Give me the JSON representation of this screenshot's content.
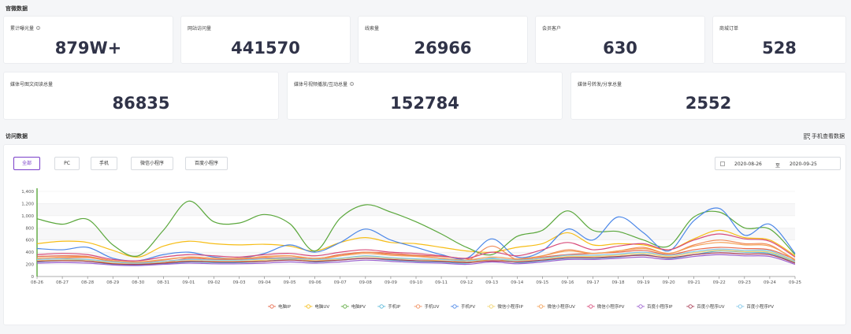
{
  "sections": {
    "official_data": "官微数据",
    "visit_data": "访问数据"
  },
  "mobile_link": "手机查看数据",
  "stats_row1": [
    {
      "label": "累计曝光量",
      "value": "879W+",
      "info": true
    },
    {
      "label": "网站访问量",
      "value": "441570",
      "info": false
    },
    {
      "label": "线索量",
      "value": "26966",
      "info": false
    },
    {
      "label": "会员客户",
      "value": "630",
      "info": false
    },
    {
      "label": "商城订单",
      "value": "528",
      "info": false
    }
  ],
  "stats_row2": [
    {
      "label": "媒体号图文阅读总量",
      "value": "86835",
      "info": false
    },
    {
      "label": "媒体号视频播放/互动总量",
      "value": "152784",
      "info": true
    },
    {
      "label": "媒体号转发/分享总量",
      "value": "2552",
      "info": false
    }
  ],
  "tabs": [
    {
      "label": "全部",
      "active": true
    },
    {
      "label": "PC",
      "active": false
    },
    {
      "label": "手机",
      "active": false
    },
    {
      "label": "微信小程序",
      "active": false
    },
    {
      "label": "百度小程序",
      "active": false
    }
  ],
  "date_range": {
    "start": "2020-08-26",
    "sep": "至",
    "end": "2020-09-25"
  },
  "chart_data": {
    "type": "line",
    "x": [
      "08-26",
      "08-27",
      "08-28",
      "08-29",
      "08-30",
      "08-31",
      "09-01",
      "09-02",
      "09-03",
      "09-04",
      "09-05",
      "09-06",
      "09-07",
      "09-08",
      "09-09",
      "09-10",
      "09-11",
      "09-12",
      "09-13",
      "09-14",
      "09-15",
      "09-16",
      "09-17",
      "09-18",
      "09-19",
      "09-20",
      "09-21",
      "09-22",
      "09-23",
      "09-24",
      "09-25"
    ],
    "y_ticks": [
      "0",
      "200",
      "400",
      "600",
      "800",
      "1,000",
      "1,200",
      "1,400"
    ],
    "ylim": [
      0,
      1400
    ],
    "series": [
      {
        "name": "电脑IP",
        "color": "#e8684a",
        "values": [
          330,
          340,
          330,
          260,
          220,
          230,
          300,
          280,
          280,
          300,
          310,
          290,
          360,
          400,
          380,
          350,
          330,
          290,
          250,
          280,
          320,
          360,
          380,
          400,
          430,
          360,
          440,
          480,
          460,
          440,
          280
        ]
      },
      {
        "name": "电脑UV",
        "color": "#f6bd16",
        "values": [
          540,
          580,
          560,
          430,
          320,
          500,
          580,
          540,
          520,
          530,
          500,
          420,
          560,
          640,
          560,
          540,
          480,
          420,
          400,
          480,
          540,
          720,
          520,
          540,
          520,
          440,
          620,
          760,
          640,
          600,
          340
        ]
      },
      {
        "name": "电脑PV",
        "color": "#5aa73b",
        "values": [
          950,
          860,
          940,
          520,
          340,
          760,
          1240,
          900,
          880,
          1020,
          870,
          420,
          960,
          1180,
          1060,
          900,
          700,
          480,
          360,
          660,
          760,
          1080,
          760,
          740,
          600,
          500,
          980,
          1060,
          800,
          780,
          360
        ]
      },
      {
        "name": "手机IP",
        "color": "#5ab8d9",
        "values": [
          240,
          260,
          250,
          200,
          190,
          210,
          240,
          230,
          230,
          250,
          280,
          240,
          270,
          300,
          270,
          250,
          240,
          220,
          300,
          230,
          260,
          300,
          300,
          320,
          360,
          300,
          360,
          420,
          400,
          380,
          230
        ]
      },
      {
        "name": "手机UV",
        "color": "#f08c5a",
        "values": [
          280,
          300,
          310,
          250,
          230,
          270,
          320,
          300,
          290,
          330,
          340,
          280,
          340,
          400,
          360,
          340,
          300,
          260,
          500,
          280,
          340,
          440,
          380,
          420,
          480,
          380,
          520,
          600,
          540,
          520,
          260
        ]
      },
      {
        "name": "手机PV",
        "color": "#4a86e8",
        "values": [
          460,
          440,
          480,
          300,
          260,
          360,
          400,
          320,
          300,
          380,
          520,
          400,
          560,
          780,
          600,
          480,
          360,
          300,
          620,
          320,
          420,
          780,
          600,
          980,
          720,
          420,
          920,
          1120,
          680,
          860,
          380
        ]
      },
      {
        "name": "微信小程序IP",
        "color": "#f2d36b",
        "values": [
          260,
          270,
          270,
          220,
          210,
          230,
          260,
          250,
          250,
          270,
          290,
          260,
          290,
          330,
          300,
          280,
          260,
          240,
          280,
          260,
          290,
          330,
          330,
          350,
          380,
          330,
          390,
          430,
          410,
          400,
          240
        ]
      },
      {
        "name": "微信小程序UV",
        "color": "#f4a055",
        "values": [
          300,
          320,
          320,
          260,
          240,
          280,
          320,
          300,
          300,
          320,
          340,
          300,
          340,
          380,
          350,
          330,
          300,
          270,
          320,
          290,
          340,
          420,
          380,
          420,
          460,
          380,
          500,
          560,
          520,
          500,
          280
        ]
      },
      {
        "name": "微信小程序PV",
        "color": "#d84b7a",
        "values": [
          360,
          380,
          360,
          280,
          260,
          320,
          360,
          340,
          320,
          360,
          380,
          340,
          400,
          440,
          400,
          380,
          340,
          300,
          400,
          340,
          440,
          560,
          440,
          500,
          540,
          440,
          600,
          700,
          620,
          580,
          320
        ]
      },
      {
        "name": "百度小程序IP",
        "color": "#9b5fcf",
        "values": [
          220,
          230,
          220,
          190,
          180,
          200,
          220,
          210,
          210,
          220,
          240,
          220,
          240,
          270,
          250,
          230,
          220,
          200,
          240,
          210,
          240,
          280,
          280,
          300,
          320,
          280,
          330,
          360,
          340,
          330,
          200
        ]
      },
      {
        "name": "百度小程序UV",
        "color": "#a83a52",
        "values": [
          250,
          260,
          250,
          210,
          200,
          220,
          250,
          240,
          240,
          250,
          270,
          250,
          270,
          300,
          280,
          260,
          250,
          230,
          260,
          240,
          270,
          310,
          310,
          330,
          350,
          310,
          360,
          390,
          370,
          360,
          220
        ]
      },
      {
        "name": "百度小程序PV",
        "color": "#7fc6e8",
        "values": [
          280,
          290,
          280,
          240,
          220,
          250,
          280,
          270,
          270,
          290,
          300,
          280,
          300,
          340,
          310,
          290,
          280,
          260,
          290,
          270,
          300,
          350,
          350,
          370,
          400,
          350,
          410,
          450,
          430,
          420,
          250
        ]
      }
    ]
  }
}
